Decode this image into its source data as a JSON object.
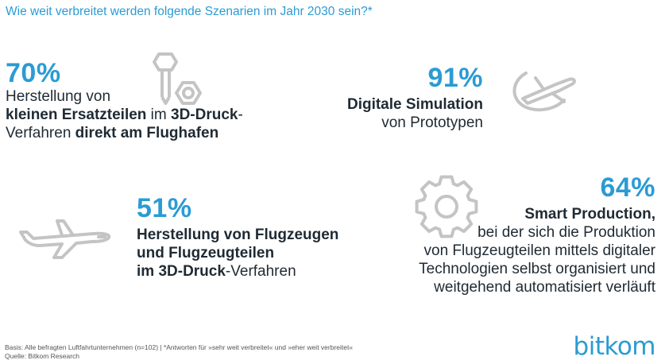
{
  "title": "Wie weit verbreitet werden folgende Szenarien im Jahr 2030 sein?*",
  "chart_data": {
    "type": "table",
    "items": [
      {
        "value": 70,
        "label": "70%",
        "lines": [
          [
            {
              "t": "Herstellung von",
              "b": false
            }
          ],
          [
            {
              "t": "kleinen Ersatzteilen",
              "b": true
            },
            {
              "t": " im ",
              "b": false
            },
            {
              "t": "3D-Druck",
              "b": true
            },
            {
              "t": "-",
              "b": false
            }
          ],
          [
            {
              "t": "Verfahren ",
              "b": false
            },
            {
              "t": "direkt am Flughafen",
              "b": true
            }
          ]
        ],
        "icon": "screw-nut-icon"
      },
      {
        "value": 91,
        "label": "91%",
        "lines": [
          [
            {
              "t": "Digitale Simulation",
              "b": true
            }
          ],
          [
            {
              "t": "von Prototypen",
              "b": false
            }
          ]
        ],
        "icon": "plane-orbit-icon"
      },
      {
        "value": 51,
        "label": "51%",
        "lines": [
          [
            {
              "t": "Herstellung von Flugzeugen",
              "b": true
            }
          ],
          [
            {
              "t": "und Flugzeugteilen",
              "b": true
            }
          ],
          [
            {
              "t": "im 3D-Druck",
              "b": true
            },
            {
              "t": "-Verfahren",
              "b": false
            }
          ]
        ],
        "icon": "airplane-icon"
      },
      {
        "value": 64,
        "label": "64%",
        "lines": [
          [
            {
              "t": "Smart Production,",
              "b": true
            }
          ],
          [
            {
              "t": "bei der sich die Produktion",
              "b": false
            }
          ],
          [
            {
              "t": "von Flugzeugteilen mittels digitaler",
              "b": false
            }
          ],
          [
            {
              "t": "Technologien selbst organisiert und",
              "b": false
            }
          ],
          [
            {
              "t": "weitgehend automatisiert verläuft",
              "b": false
            }
          ]
        ],
        "icon": "gear-icon"
      }
    ]
  },
  "footer": {
    "basis": "Basis: Alle befragten Luftfahrtunternehmen (n=102) | *Antworten für »sehr weit verbreitet« und »eher weit verbreitet«",
    "source": "Quelle: Bitkom Research"
  },
  "logo": "bitkom",
  "colors": {
    "accent": "#2b9bd3",
    "text": "#1f2a33",
    "icon": "#c4c4c4"
  }
}
